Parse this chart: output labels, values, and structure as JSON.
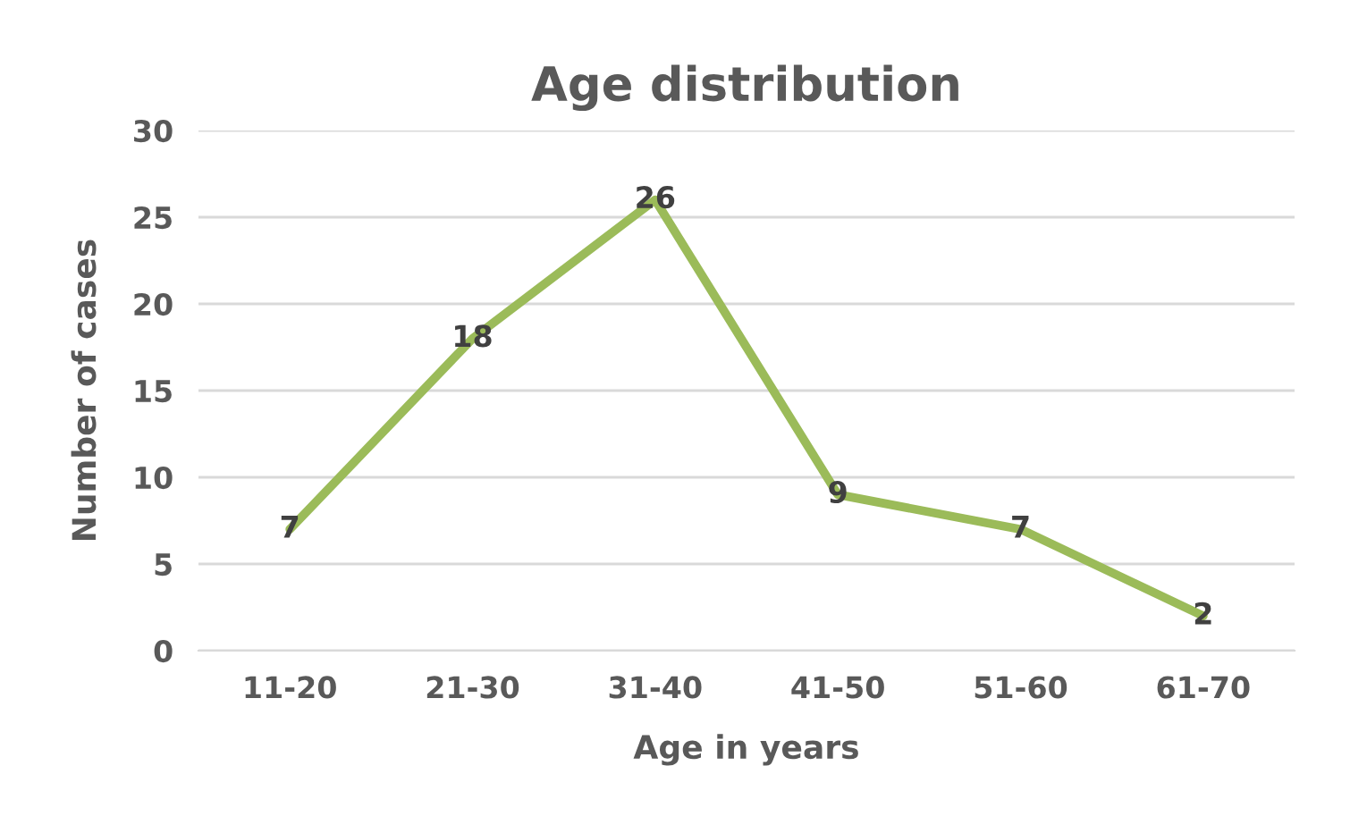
{
  "chart_data": {
    "type": "line",
    "title": "Age distribution",
    "xlabel": "Age in years",
    "ylabel": "Number of cases",
    "categories": [
      "11-20",
      "21-30",
      "31-40",
      "41-50",
      "51-60",
      "61-70"
    ],
    "series": [
      {
        "color": "#9bbb59",
        "values": [
          7,
          18,
          26,
          9,
          7,
          2
        ]
      }
    ],
    "ylim": [
      0,
      30
    ],
    "yticks": [
      0,
      5,
      10,
      15,
      20,
      25,
      30
    ],
    "grid": "y",
    "data_labels": true,
    "marker": "none",
    "line_style": "solid"
  }
}
